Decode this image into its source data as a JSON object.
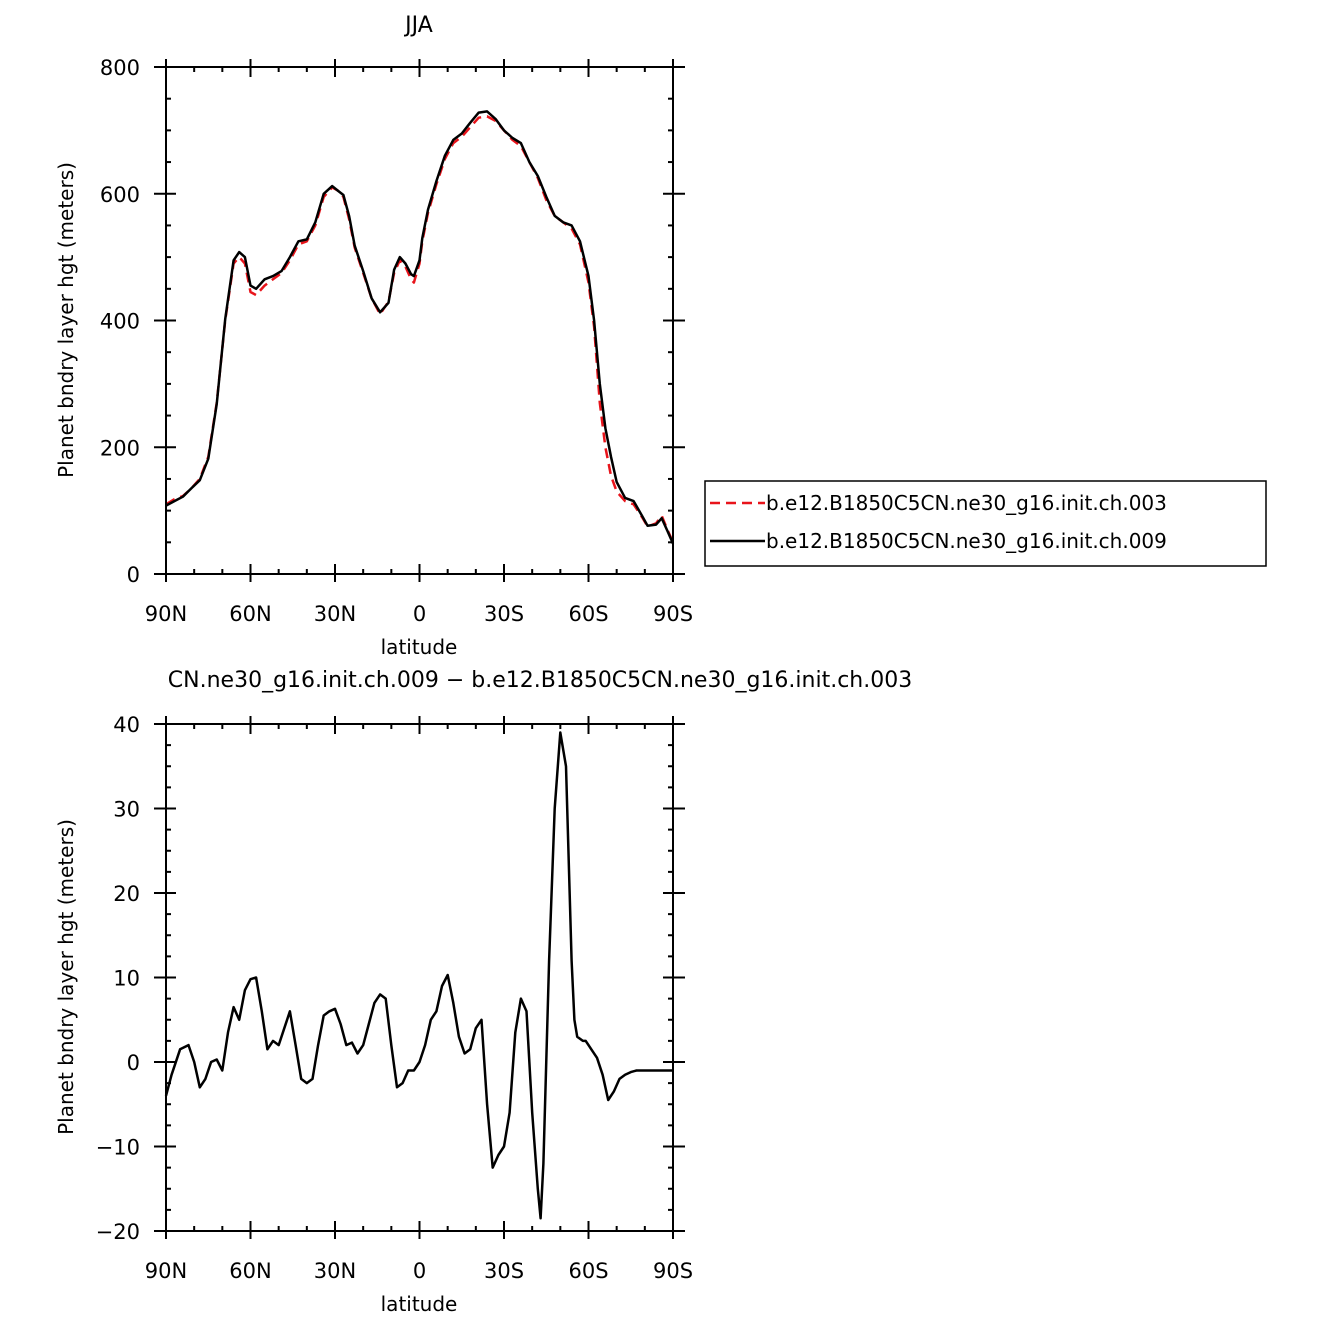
{
  "chart_data": [
    {
      "type": "line",
      "title": "JJA",
      "xlabel": "latitude",
      "ylabel": "Planet bndry layer hgt (meters)",
      "xlim": [
        90,
        -90
      ],
      "ylim": [
        0,
        800
      ],
      "x_tick_values": [
        90,
        60,
        30,
        0,
        -30,
        -60,
        -90
      ],
      "x_tick_labels": [
        "90N",
        "60N",
        "30N",
        "0",
        "30S",
        "60S",
        "90S"
      ],
      "y_tick_values": [
        0,
        200,
        400,
        600,
        800
      ],
      "y_tick_labels": [
        "0",
        "200",
        "400",
        "600",
        "800"
      ],
      "grid": false,
      "legend_position": "right",
      "series": [
        {
          "name": "b.e12.B1850C5CN.ne30_g16.init.ch.003",
          "color": "#e8141b",
          "dash": "dashed",
          "x": [
            90,
            87,
            84,
            81,
            78,
            75,
            72,
            69,
            66,
            64,
            62,
            60,
            58,
            55,
            52,
            49,
            46,
            43,
            40,
            37,
            34,
            31,
            29,
            27,
            25,
            23,
            20,
            17,
            14,
            11,
            9,
            7,
            5,
            3,
            2,
            0,
            -1,
            -3,
            -6,
            -9,
            -12,
            -15,
            -18,
            -21,
            -24,
            -27,
            -30,
            -33,
            -36,
            -39,
            -42,
            -45,
            -48,
            -51,
            -54,
            -57,
            -60,
            -62,
            -64,
            -66,
            -68,
            -70,
            -73,
            -76,
            -79,
            -81,
            -84,
            -86,
            -88,
            -90
          ],
          "y": [
            110,
            118,
            123,
            135,
            150,
            185,
            270,
            400,
            490,
            500,
            490,
            445,
            440,
            455,
            465,
            475,
            495,
            520,
            525,
            550,
            595,
            610,
            605,
            595,
            560,
            515,
            475,
            435,
            410,
            430,
            475,
            495,
            485,
            465,
            460,
            490,
            525,
            570,
            615,
            655,
            680,
            690,
            705,
            720,
            722,
            715,
            700,
            685,
            675,
            650,
            625,
            590,
            565,
            555,
            545,
            520,
            460,
            390,
            270,
            200,
            155,
            130,
            115,
            110,
            90,
            75,
            80,
            92,
            70,
            50
          ]
        },
        {
          "name": "b.e12.B1850C5CN.ne30_g16.init.ch.009",
          "color": "#000000",
          "dash": "solid",
          "x": [
            90,
            87,
            84,
            81,
            78,
            75,
            72,
            69,
            66,
            64,
            62,
            60,
            58,
            55,
            52,
            49,
            46,
            43,
            40,
            37,
            34,
            31,
            29,
            27,
            25,
            23,
            20,
            17,
            14,
            11,
            9,
            7,
            5,
            3,
            2,
            0,
            -1,
            -3,
            -6,
            -9,
            -12,
            -15,
            -18,
            -21,
            -24,
            -27,
            -30,
            -33,
            -36,
            -39,
            -42,
            -45,
            -48,
            -51,
            -54,
            -57,
            -60,
            -62,
            -64,
            -66,
            -68,
            -70,
            -73,
            -76,
            -79,
            -81,
            -84,
            -86,
            -88,
            -90
          ],
          "y": [
            108,
            115,
            122,
            135,
            148,
            182,
            268,
            402,
            495,
            508,
            500,
            455,
            450,
            465,
            470,
            478,
            500,
            525,
            528,
            555,
            600,
            612,
            605,
            598,
            565,
            518,
            478,
            435,
            413,
            428,
            480,
            500,
            490,
            473,
            470,
            495,
            530,
            575,
            620,
            660,
            685,
            695,
            712,
            728,
            730,
            718,
            700,
            688,
            680,
            650,
            628,
            595,
            565,
            555,
            550,
            525,
            470,
            400,
            300,
            230,
            185,
            145,
            120,
            115,
            92,
            76,
            78,
            88,
            68,
            48
          ]
        }
      ]
    },
    {
      "type": "line",
      "title": "CN.ne30_g16.init.ch.009 − b.e12.B1850C5CN.ne30_g16.init.ch.003",
      "xlabel": "latitude",
      "ylabel": "Planet bndry layer hgt (meters)",
      "xlim": [
        90,
        -90
      ],
      "ylim": [
        -20,
        40
      ],
      "x_tick_values": [
        90,
        60,
        30,
        0,
        -30,
        -60,
        -90
      ],
      "x_tick_labels": [
        "90N",
        "60N",
        "30N",
        "0",
        "30S",
        "60S",
        "90S"
      ],
      "y_tick_values": [
        -20,
        -10,
        0,
        10,
        20,
        30,
        40
      ],
      "y_tick_labels": [
        "−20",
        "−10",
        "0",
        "10",
        "20",
        "30",
        "40"
      ],
      "grid": false,
      "series": [
        {
          "color": "#000000",
          "dash": "solid",
          "x": [
            90,
            88,
            85,
            82,
            80,
            78,
            76,
            74,
            72,
            70,
            68,
            66,
            64,
            62,
            60,
            58,
            56,
            54,
            52,
            50,
            48,
            46,
            44,
            42,
            40,
            38,
            36,
            34,
            32,
            30,
            28,
            26,
            24,
            22,
            20,
            18,
            16,
            14,
            12,
            10,
            8,
            6,
            4,
            2,
            0,
            -2,
            -4,
            -6,
            -8,
            -10,
            -12,
            -14,
            -16,
            -18,
            -20,
            -22,
            -24,
            -26,
            -28,
            -30,
            -32,
            -34,
            -36,
            -38,
            -40,
            -42,
            -43,
            -44,
            -46,
            -48,
            -50,
            -52,
            -54,
            -55,
            -56,
            -58,
            -59,
            -60,
            -61,
            -63,
            -65,
            -66,
            -67,
            -69,
            -71,
            -73,
            -75,
            -77,
            -79,
            -81,
            -83,
            -85,
            -86,
            -87,
            -88,
            -89,
            -90
          ],
          "y": [
            -4,
            -1.5,
            1.5,
            2,
            0,
            -3,
            -2,
            0,
            0.3,
            -1,
            3.5,
            6.5,
            5,
            8.5,
            9.8,
            10,
            6,
            1.5,
            2.5,
            2,
            4,
            6,
            2,
            -2,
            -2.5,
            -2,
            2,
            5.5,
            6,
            6.3,
            4.5,
            2,
            2.3,
            1,
            2,
            4.5,
            7,
            8,
            7.5,
            2,
            -3,
            -2.5,
            -1,
            -1,
            0,
            2,
            5,
            6,
            9,
            10.3,
            7,
            3,
            1,
            1.5,
            4,
            5,
            -5,
            -12.5,
            -11,
            -10,
            -6,
            3.5,
            7.5,
            6,
            -6,
            -15,
            -18.5,
            -12,
            12,
            30,
            39,
            35,
            12,
            5,
            3,
            2.5,
            2.5,
            2,
            1.5,
            0.5,
            -1.5,
            -3,
            -4.5,
            -3.5,
            -2,
            -1.5,
            -1.2,
            -1,
            -1,
            -1,
            -1,
            -1,
            -1,
            -1,
            -1,
            -1,
            -1
          ]
        }
      ]
    }
  ]
}
